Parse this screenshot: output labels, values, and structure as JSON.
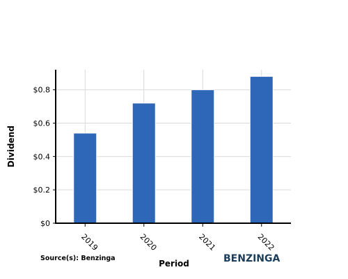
{
  "chart_data": {
    "type": "bar",
    "categories": [
      "2019",
      "2020",
      "2021",
      "2022"
    ],
    "values": [
      0.54,
      0.72,
      0.8,
      0.88
    ],
    "xlabel": "Period",
    "ylabel": "Dividend",
    "ylim": [
      0,
      0.92
    ],
    "yticks": [
      0,
      0.2,
      0.4,
      0.6,
      0.8
    ],
    "ytick_labels": [
      "$0",
      "$0.2",
      "$0.4",
      "$0.6",
      "$0.8"
    ],
    "grid": true,
    "bar_color": "#2f67b8"
  },
  "footer": {
    "source": "Source(s): Benzinga",
    "brand": "BENZINGA"
  }
}
